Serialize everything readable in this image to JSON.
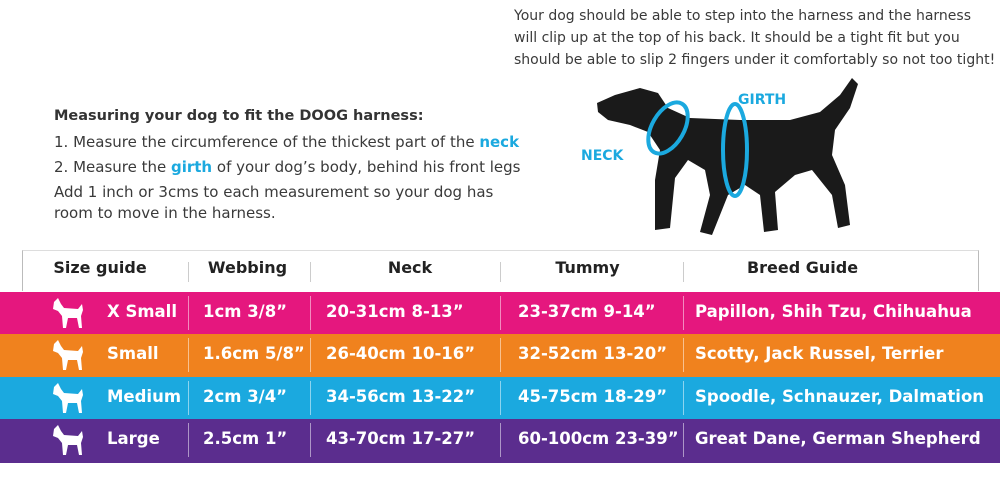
{
  "intro": [
    "Your dog should be able to step into the harness and the harness",
    "will clip up at the top of his back. It should be a tight fit but you",
    "should be able to slip 2 fingers under it comfortably so not too tight!"
  ],
  "measuring": {
    "title": "Measuring your dog to fit the DOOG harness:",
    "steps": [
      [
        "1. Measure the circumference of the thickest part of the ",
        "neck"
      ],
      [
        "2. Measure the ",
        "girth",
        " of your dog’s body, behind his front legs"
      ]
    ],
    "note": [
      "Add 1 inch or 3cms to each measurement so your dog has",
      "room to move in the harness."
    ]
  },
  "diagram": {
    "girth": "GIRTH",
    "neck": "NECK"
  },
  "table": {
    "header": [
      "Size guide",
      "Webbing",
      "Neck",
      "Tummy",
      "Breed Guide"
    ],
    "rows": [
      [
        "X Small",
        "1cm  3/8”",
        "20-31cm  8-13”",
        "23-37cm  9-14”",
        "Papillon, Shih Tzu, Chihuahua"
      ],
      [
        "Small",
        "1.6cm  5/8”",
        "26-40cm  10-16”",
        "32-52cm  13-20”",
        "Scotty, Jack Russel, Terrier"
      ],
      [
        "Medium",
        "2cm  3/4”",
        "34-56cm  13-22”",
        "45-75cm  18-29”",
        "Spoodle, Schnauzer, Dalmation"
      ],
      [
        "Large",
        "2.5cm  1”",
        "43-70cm  17-27”",
        "60-100cm  23-39”",
        "Great Dane, German Shepherd"
      ]
    ]
  }
}
